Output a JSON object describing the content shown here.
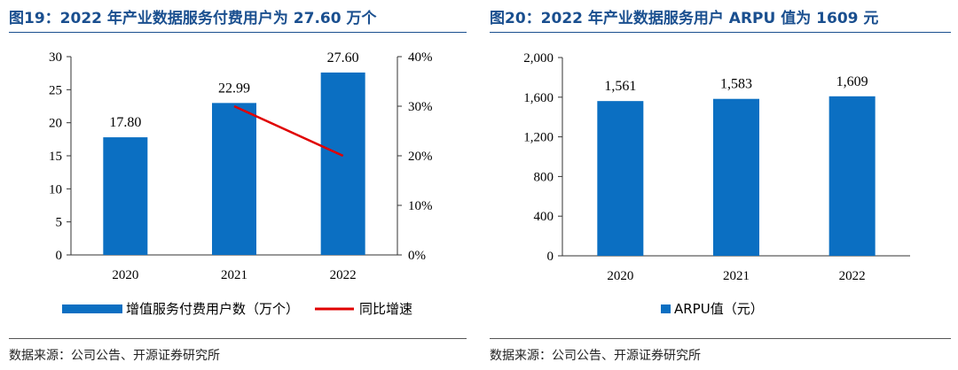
{
  "colors": {
    "bar": "#0b6fc2",
    "line": "#e00000",
    "title": "#1a4f8f"
  },
  "left": {
    "title": "图19：2022 年产业数据服务付费用户为 27.60 万个",
    "source": "数据来源：公司公告、开源证券研究所",
    "legend_bar": "增值服务付费用户数（万个）",
    "legend_line": "同比增速"
  },
  "right": {
    "title": "图20：2022 年产业数据服务用户 ARPU 值为 1609 元",
    "source": "数据来源：公司公告、开源证券研究所",
    "legend_bar": "ARPU值（元）"
  },
  "chart_data": [
    {
      "type": "bar",
      "title": "2022 年产业数据服务付费用户为 27.60 万个",
      "categories": [
        "2020",
        "2021",
        "2022"
      ],
      "series": [
        {
          "name": "增值服务付费用户数（万个）",
          "type": "bar",
          "axis": "left",
          "values": [
            17.8,
            22.99,
            27.6
          ],
          "labels": [
            "17.80",
            "22.99",
            "27.60"
          ]
        },
        {
          "name": "同比增速",
          "type": "line",
          "axis": "right",
          "values": [
            null,
            30,
            20
          ]
        }
      ],
      "ylim": [
        0,
        30
      ],
      "yticks": [
        "0",
        "5",
        "10",
        "15",
        "20",
        "25",
        "30"
      ],
      "y2lim": [
        0,
        40
      ],
      "y2ticks": [
        "0%",
        "10%",
        "20%",
        "30%",
        "40%"
      ]
    },
    {
      "type": "bar",
      "title": "2022 年产业数据服务用户 ARPU 值为 1609 元",
      "categories": [
        "2020",
        "2021",
        "2022"
      ],
      "series": [
        {
          "name": "ARPU值（元）",
          "values": [
            1561,
            1583,
            1609
          ],
          "labels": [
            "1,561",
            "1,583",
            "1,609"
          ]
        }
      ],
      "ylim": [
        0,
        2000
      ],
      "yticks": [
        "0",
        "400",
        "800",
        "1,200",
        "1,600",
        "2,000"
      ]
    }
  ]
}
